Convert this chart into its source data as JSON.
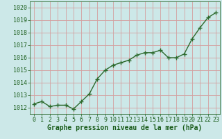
{
  "x": [
    0,
    1,
    2,
    3,
    4,
    5,
    6,
    7,
    8,
    9,
    10,
    11,
    12,
    13,
    14,
    15,
    16,
    17,
    18,
    19,
    20,
    21,
    22,
    23
  ],
  "y": [
    1012.3,
    1012.5,
    1012.1,
    1012.2,
    1012.2,
    1011.9,
    1012.5,
    1013.1,
    1014.3,
    1015.0,
    1015.4,
    1015.6,
    1015.8,
    1016.2,
    1016.4,
    1016.4,
    1016.6,
    1016.0,
    1016.0,
    1016.3,
    1017.5,
    1018.4,
    1019.2,
    1019.6
  ],
  "line_color": "#2d6a2d",
  "marker": "+",
  "marker_size": 4,
  "marker_lw": 1.0,
  "bg_color": "#cce8e8",
  "grid_color": "#d4a0a0",
  "xlabel": "Graphe pression niveau de la mer (hPa)",
  "xlabel_color": "#1a5c1a",
  "tick_color": "#1a5c1a",
  "ylim": [
    1011.5,
    1020.5
  ],
  "yticks": [
    1012,
    1013,
    1014,
    1015,
    1016,
    1017,
    1018,
    1019,
    1020
  ],
  "xlim": [
    -0.5,
    23.5
  ],
  "xticks": [
    0,
    1,
    2,
    3,
    4,
    5,
    6,
    7,
    8,
    9,
    10,
    11,
    12,
    13,
    14,
    15,
    16,
    17,
    18,
    19,
    20,
    21,
    22,
    23
  ],
  "xlabel_fontsize": 7,
  "tick_fontsize": 6,
  "linewidth": 1.0
}
